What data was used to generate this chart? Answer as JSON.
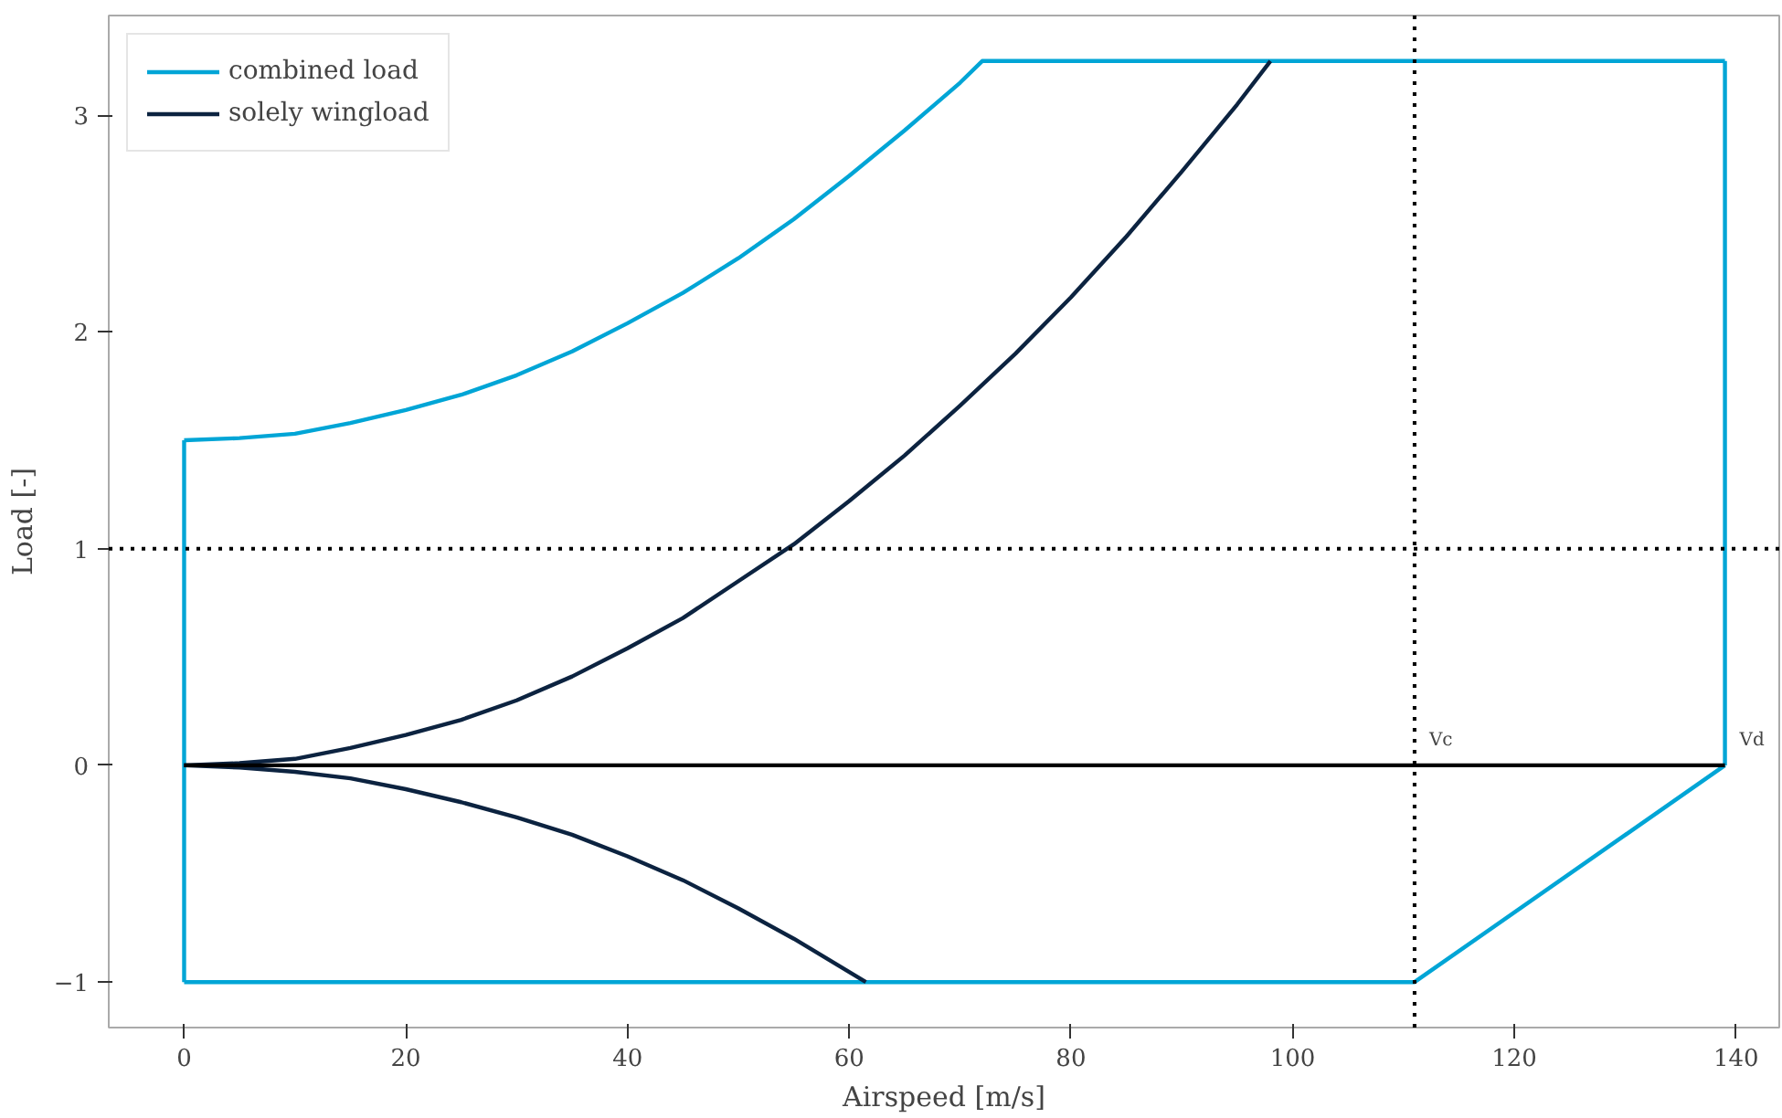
{
  "chart_data": {
    "type": "line",
    "xlabel": "Airspeed [m/s]",
    "ylabel": "Load [-]",
    "xlim": [
      -6.8,
      143.9
    ],
    "ylim": [
      -1.21,
      3.46
    ],
    "xticks": [
      0,
      20,
      40,
      60,
      80,
      100,
      120,
      140
    ],
    "yticks": [
      {
        "value": -1,
        "label": "−1"
      },
      0,
      1,
      2,
      3
    ],
    "grid": false,
    "legend": "top left",
    "line_style": "solid",
    "marker": "none",
    "series": [
      {
        "name": "combined load",
        "color": "#00a5d6",
        "x": [
          0,
          5,
          10,
          15,
          20,
          25,
          30,
          35,
          40,
          45,
          50,
          55,
          60,
          65,
          70,
          72,
          139
        ],
        "values": [
          1.5,
          1.51,
          1.53,
          1.58,
          1.64,
          1.71,
          1.8,
          1.91,
          2.04,
          2.18,
          2.34,
          2.52,
          2.72,
          2.93,
          3.15,
          3.25,
          3.25
        ]
      },
      {
        "color": "#00a5d6",
        "x": [
          0,
          111,
          139
        ],
        "values": [
          -1,
          -1,
          0
        ]
      },
      {
        "color": "#00a5d6",
        "x": [
          0,
          0
        ],
        "values": [
          -1,
          1.5
        ]
      },
      {
        "color": "#00a5d6",
        "x": [
          139,
          139
        ],
        "values": [
          0,
          3.25
        ]
      },
      {
        "name": "solely wingload",
        "color": "#0c2340",
        "x": [
          0,
          5,
          10,
          15,
          20,
          25,
          30,
          35,
          40,
          45,
          50,
          55,
          60,
          65,
          70,
          75,
          80,
          85,
          90,
          95,
          98
        ],
        "values": [
          0,
          0.01,
          0.03,
          0.08,
          0.14,
          0.21,
          0.3,
          0.41,
          0.54,
          0.68,
          0.85,
          1.02,
          1.22,
          1.43,
          1.66,
          1.9,
          2.16,
          2.44,
          2.74,
          3.05,
          3.25
        ]
      },
      {
        "color": "#0c2340",
        "x": [
          0,
          5,
          10,
          15,
          20,
          25,
          30,
          35,
          40,
          45,
          50,
          55,
          61.5
        ],
        "values": [
          0,
          -0.01,
          -0.03,
          -0.06,
          -0.11,
          -0.17,
          -0.24,
          -0.32,
          -0.42,
          -0.53,
          -0.66,
          -0.8,
          -1
        ]
      },
      {
        "color": "#000000",
        "x": [
          0,
          139
        ],
        "values": [
          0,
          0
        ]
      }
    ],
    "ref_lines": [
      {
        "axis": "y",
        "value": 1,
        "color": "#000000",
        "line_style": "dotted"
      },
      {
        "axis": "x",
        "value": 111,
        "color": "#000000",
        "line_style": "dotted"
      }
    ],
    "annotations": [
      {
        "text": "Vc",
        "x": 111,
        "y": 0
      },
      {
        "text": "Vd",
        "x": 139,
        "y": 0
      }
    ]
  }
}
